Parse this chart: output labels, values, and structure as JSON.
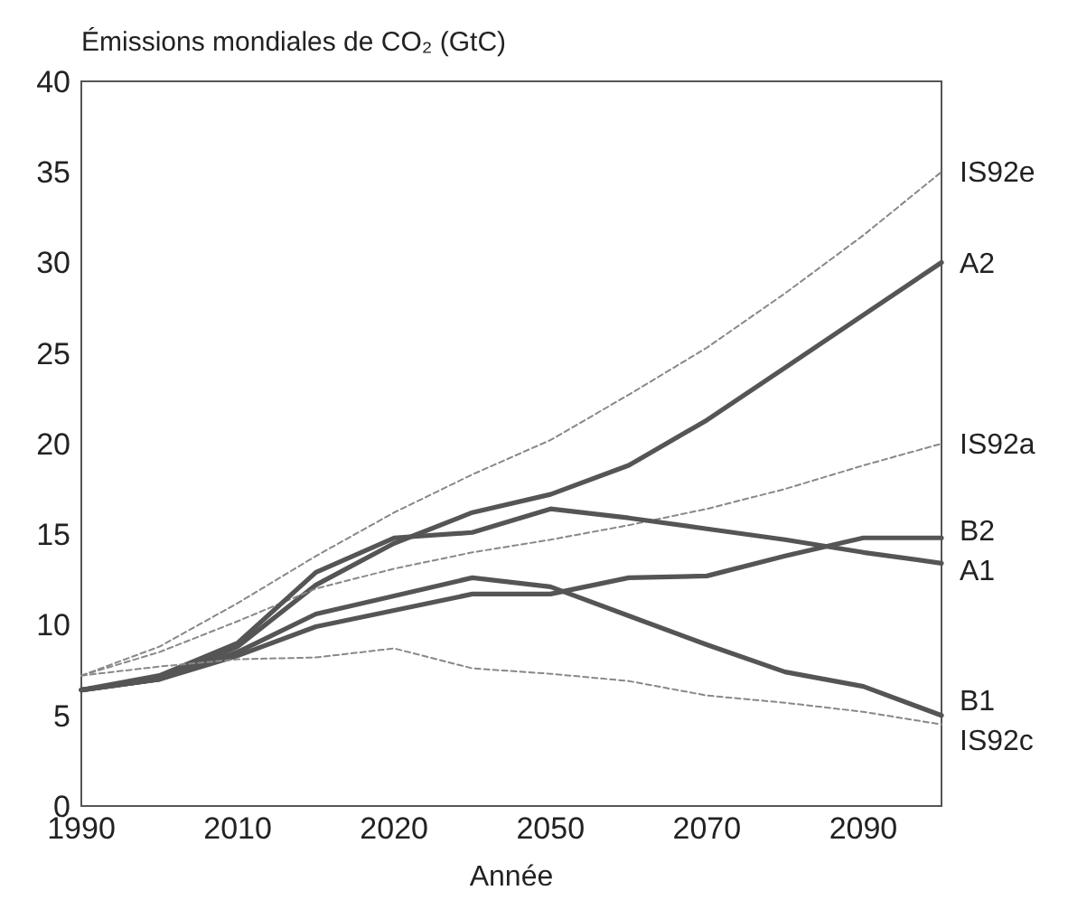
{
  "chart_data": {
    "type": "line",
    "title": "Émissions mondiales de CO₂  (GtC)",
    "xlabel": "Année",
    "categories": [
      "1990",
      null,
      "2010",
      null,
      "2020",
      null,
      "2050",
      null,
      "2070",
      null,
      "2090",
      null
    ],
    "ylim": [
      0,
      40
    ],
    "yticks": [
      0,
      5,
      10,
      15,
      20,
      25,
      30,
      35,
      40
    ],
    "grid": false,
    "series": [
      {
        "name": "IS92e",
        "color": "#888888",
        "line_style": "dashed",
        "values": [
          7.2,
          8.8,
          11.2,
          13.8,
          16.2,
          18.3,
          20.2,
          22.7,
          25.3,
          28.3,
          31.5,
          35
        ]
      },
      {
        "name": "A2",
        "color": "#555555",
        "line_style": "solid",
        "values": [
          6.4,
          7.0,
          8.8,
          12.2,
          14.5,
          16.2,
          17.2,
          18.8,
          21.3,
          24.2,
          27.1,
          30
        ]
      },
      {
        "name": "IS92a",
        "color": "#888888",
        "line_style": "dashed",
        "values": [
          7.2,
          8.5,
          10.2,
          12.0,
          13.1,
          14.0,
          14.7,
          15.5,
          16.4,
          17.5,
          18.8,
          20.0
        ]
      },
      {
        "name": "B2",
        "color": "#555555",
        "line_style": "solid",
        "values": [
          6.4,
          7.0,
          8.3,
          9.9,
          10.8,
          11.7,
          11.7,
          12.6,
          12.7,
          13.8,
          14.8,
          14.8
        ]
      },
      {
        "name": "A1",
        "color": "#555555",
        "line_style": "solid",
        "values": [
          6.4,
          7.2,
          9.0,
          12.9,
          14.8,
          15.1,
          16.4,
          15.9,
          15.3,
          14.7,
          14.0,
          13.4
        ]
      },
      {
        "name": "B1",
        "color": "#555555",
        "line_style": "solid",
        "values": [
          6.4,
          7.0,
          8.5,
          10.6,
          11.6,
          12.6,
          12.1,
          10.5,
          8.9,
          7.4,
          6.6,
          5.0
        ]
      },
      {
        "name": "IS92c",
        "color": "#888888",
        "line_style": "dashed",
        "values": [
          7.2,
          7.7,
          8.1,
          8.2,
          8.7,
          7.6,
          7.3,
          6.9,
          6.1,
          5.7,
          5.2,
          4.5
        ]
      }
    ]
  }
}
